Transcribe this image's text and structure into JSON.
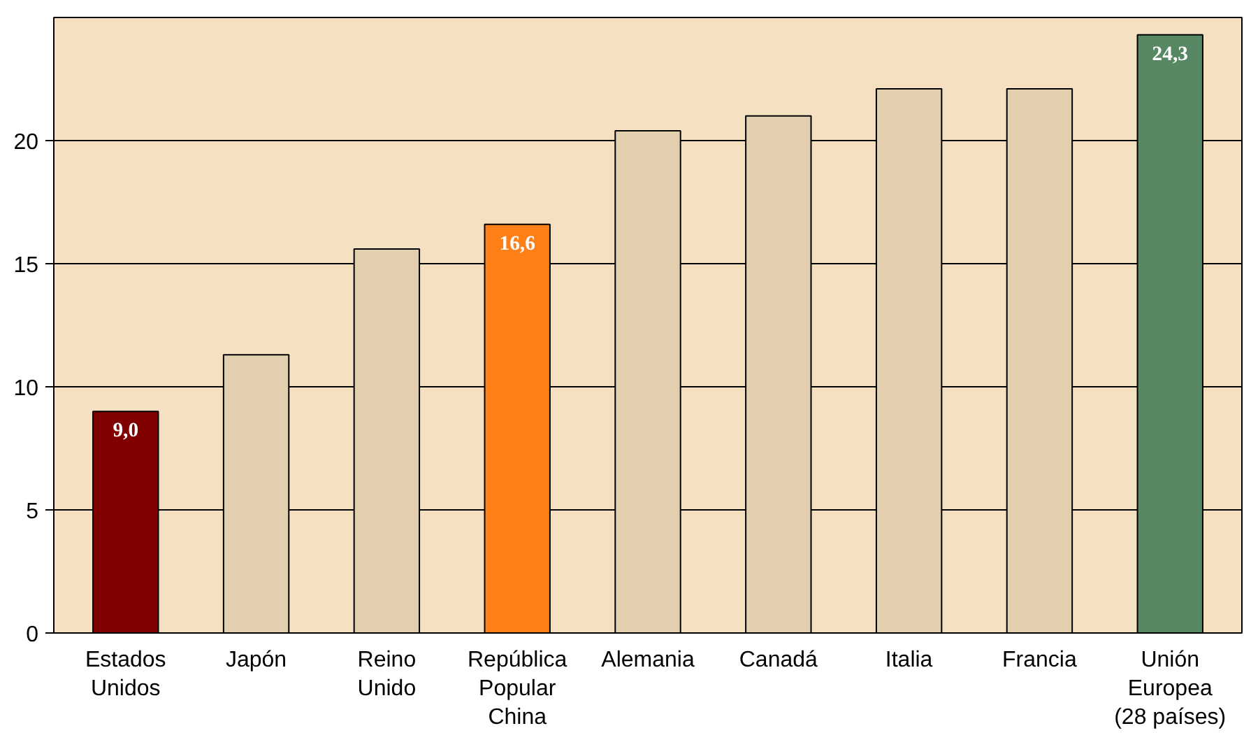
{
  "chart_data": {
    "type": "bar",
    "categories": [
      "Estados\nUnidos",
      "Japón",
      "Reino\nUnido",
      "República\nPopular\nChina",
      "Alemania",
      "Canadá",
      "Italia",
      "Francia",
      "Unión\nEuropea\n(28 países)"
    ],
    "values": [
      9.0,
      11.3,
      15.6,
      16.6,
      20.4,
      21.0,
      22.1,
      22.1,
      24.3
    ],
    "colors": [
      "#800000",
      "#e2cfad",
      "#e2cfad",
      "#ff7f17",
      "#e2cfad",
      "#e2cfad",
      "#e2cfad",
      "#e2cfad",
      "#588763"
    ],
    "value_labels": [
      "9,0",
      null,
      null,
      "16,6",
      null,
      null,
      null,
      null,
      "24,3"
    ],
    "ylim": [
      0,
      25
    ],
    "yticks": [
      0,
      5,
      10,
      15,
      20
    ],
    "grid": "y"
  }
}
